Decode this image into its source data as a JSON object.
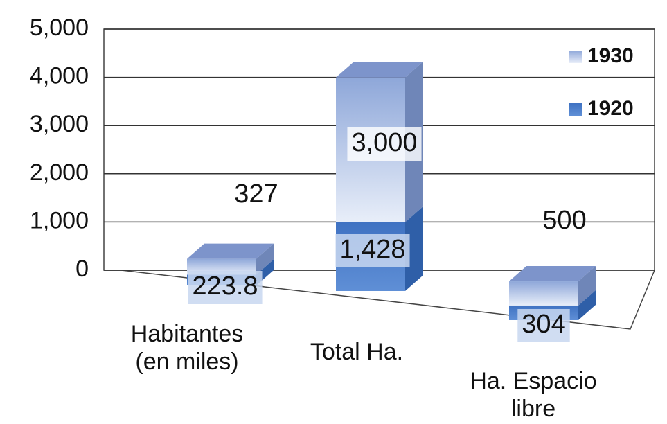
{
  "chart_data": {
    "type": "bar3d_stacked",
    "categories": [
      "Habitantes (en miles)",
      "Total Ha.",
      "Ha. Espacio libre"
    ],
    "series": [
      {
        "name": "1920",
        "color": "#4a7cc8",
        "values": [
          223.8,
          1428,
          304
        ],
        "value_labels": [
          "223.8",
          "1,428",
          "304"
        ]
      },
      {
        "name": "1930",
        "color": "#b9cbea",
        "values": [
          327,
          3000,
          500
        ],
        "value_labels": [
          "327",
          "3,000",
          "500"
        ]
      }
    ],
    "ylim": [
      0,
      5000
    ],
    "yticks": [
      0,
      {
        "value": 1000,
        "label": "1,000"
      },
      {
        "value": 2000,
        "label": "2,000"
      },
      {
        "value": 3000,
        "label": "3,000"
      },
      {
        "value": 4000,
        "label": "4,000"
      },
      {
        "value": 5000,
        "label": "5,000"
      }
    ],
    "grid": true,
    "legend": "top-right"
  }
}
